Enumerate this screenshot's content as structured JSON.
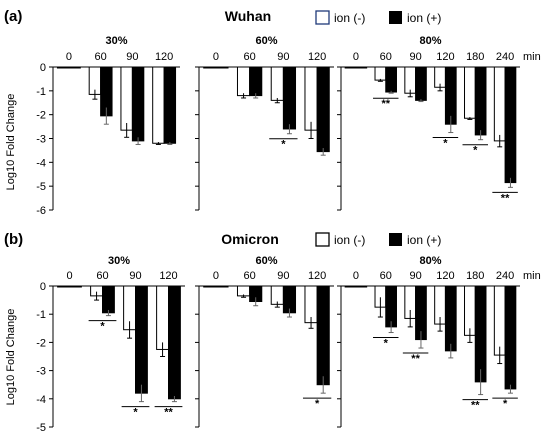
{
  "chart_data": [
    {
      "type": "bar",
      "panel_label": "(a)",
      "title": "Wuhan",
      "ylabel": "Log10 Fold Change",
      "ylim": [
        -6,
        0
      ],
      "yticks": [
        "0",
        "-1",
        "-2",
        "-3",
        "-4",
        "-5",
        "-6"
      ],
      "x_unit": "min",
      "legend": [
        {
          "name": "ion (-)",
          "fill": "#ffffff",
          "stroke": "#1f3a7a"
        },
        {
          "name": "ion (+)",
          "fill": "#000000",
          "stroke": "#000000"
        }
      ],
      "groups": [
        {
          "label": "30%",
          "categories": [
            "0",
            "60",
            "90",
            "120"
          ],
          "series": [
            {
              "name": "ion (-)",
              "values": [
                -0.02,
                -1.15,
                -2.65,
                -3.2
              ],
              "errors": [
                0.02,
                0.2,
                0.3,
                0.05
              ]
            },
            {
              "name": "ion (+)",
              "values": [
                -0.02,
                -2.05,
                -3.1,
                -3.2
              ],
              "errors": [
                0.02,
                0.35,
                0.15,
                0.05
              ]
            }
          ],
          "significance": [
            "",
            "",
            "",
            ""
          ]
        },
        {
          "label": "60%",
          "categories": [
            "0",
            "60",
            "90",
            "120"
          ],
          "series": [
            {
              "name": "ion (-)",
              "values": [
                -0.02,
                -1.2,
                -1.4,
                -2.65
              ],
              "errors": [
                0.02,
                0.1,
                0.1,
                0.35
              ]
            },
            {
              "name": "ion (+)",
              "values": [
                -0.02,
                -1.2,
                -2.6,
                -3.55
              ],
              "errors": [
                0.02,
                0.1,
                0.2,
                0.15
              ]
            }
          ],
          "significance": [
            "",
            "",
            "*",
            ""
          ]
        },
        {
          "label": "80%",
          "categories": [
            "0",
            "60",
            "90",
            "120",
            "180",
            "240"
          ],
          "series": [
            {
              "name": "ion (-)",
              "values": [
                -0.02,
                -0.55,
                -1.1,
                -0.85,
                -2.15,
                -3.1
              ],
              "errors": [
                0.02,
                0.05,
                0.15,
                0.15,
                0.05,
                0.25
              ]
            },
            {
              "name": "ion (+)",
              "values": [
                -0.02,
                -1.05,
                -1.4,
                -2.4,
                -2.85,
                -4.85
              ],
              "errors": [
                0.02,
                0.05,
                0.05,
                0.35,
                0.2,
                0.2
              ]
            }
          ],
          "significance": [
            "",
            "**",
            "",
            "*",
            "*",
            "**"
          ]
        }
      ]
    },
    {
      "type": "bar",
      "panel_label": "(b)",
      "title": "Omicron",
      "ylabel": "Log10 Fold Change",
      "ylim": [
        -5,
        0
      ],
      "yticks": [
        "0",
        "-1",
        "-2",
        "-3",
        "-4",
        "-5"
      ],
      "x_unit": "min",
      "legend": [
        {
          "name": "ion (-)",
          "fill": "#ffffff",
          "stroke": "#000000"
        },
        {
          "name": "ion (+)",
          "fill": "#000000",
          "stroke": "#000000"
        }
      ],
      "groups": [
        {
          "label": "30%",
          "categories": [
            "0",
            "60",
            "90",
            "120"
          ],
          "series": [
            {
              "name": "ion (-)",
              "values": [
                -0.02,
                -0.35,
                -1.55,
                -2.25
              ],
              "errors": [
                0.02,
                0.15,
                0.3,
                0.25
              ]
            },
            {
              "name": "ion (+)",
              "values": [
                -0.02,
                -0.95,
                -3.8,
                -4.0
              ],
              "errors": [
                0.02,
                0.1,
                0.3,
                0.1
              ]
            }
          ],
          "significance": [
            "",
            "*",
            "*",
            "**"
          ]
        },
        {
          "label": "60%",
          "categories": [
            "0",
            "60",
            "90",
            "120"
          ],
          "series": [
            {
              "name": "ion (-)",
              "values": [
                -0.02,
                -0.35,
                -0.65,
                -1.3
              ],
              "errors": [
                0.02,
                0.05,
                0.1,
                0.2
              ]
            },
            {
              "name": "ion (+)",
              "values": [
                -0.02,
                -0.55,
                -0.95,
                -3.5
              ],
              "errors": [
                0.02,
                0.15,
                0.15,
                0.3
              ]
            }
          ],
          "significance": [
            "",
            "",
            "",
            "*"
          ]
        },
        {
          "label": "80%",
          "categories": [
            "0",
            "60",
            "90",
            "120",
            "180",
            "240"
          ],
          "series": [
            {
              "name": "ion (-)",
              "values": [
                -0.02,
                -0.75,
                -1.15,
                -1.35,
                -1.75,
                -2.45
              ],
              "errors": [
                0.02,
                0.35,
                0.3,
                0.25,
                0.25,
                0.3
              ]
            },
            {
              "name": "ion (+)",
              "values": [
                -0.02,
                -1.45,
                -1.9,
                -2.3,
                -3.4,
                -3.65
              ],
              "errors": [
                0.02,
                0.2,
                0.3,
                0.25,
                0.45,
                0.15
              ]
            }
          ],
          "significance": [
            "",
            "*",
            "**",
            "",
            "**",
            "*"
          ]
        }
      ]
    }
  ]
}
